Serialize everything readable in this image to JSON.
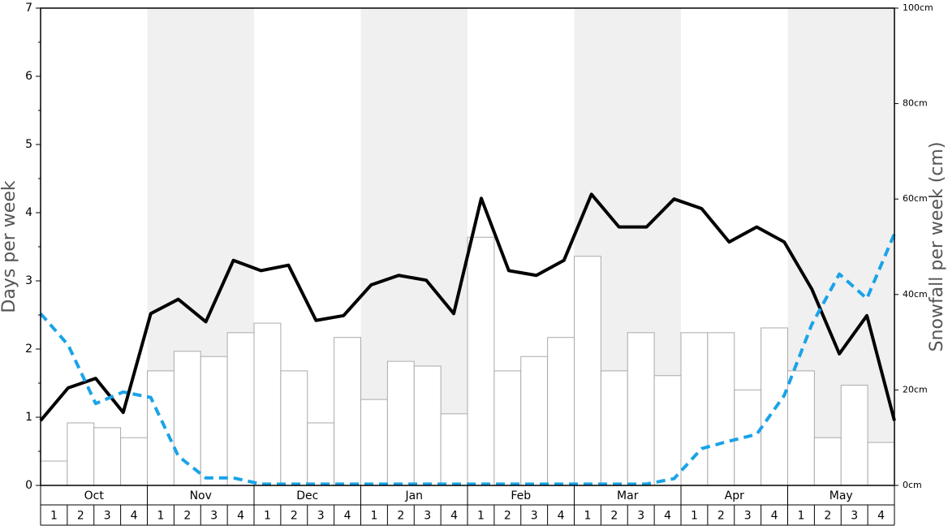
{
  "chart_data": {
    "type": "bar-line",
    "ylabel": "Days per week",
    "y2label": "Snowfall per week (cm)",
    "months": [
      "Oct",
      "Nov",
      "Dec",
      "Jan",
      "Feb",
      "Mar",
      "Apr",
      "May"
    ],
    "categories": [
      "1",
      "2",
      "3",
      "4",
      "1",
      "2",
      "3",
      "4",
      "1",
      "2",
      "3",
      "4",
      "1",
      "2",
      "3",
      "4",
      "1",
      "2",
      "3",
      "4",
      "1",
      "2",
      "3",
      "4",
      "1",
      "2",
      "3",
      "4",
      "1",
      "2",
      "3",
      "4"
    ],
    "ylim": [
      0,
      7
    ],
    "yticks": [
      0,
      1,
      2,
      3,
      4,
      5,
      6,
      7
    ],
    "yminorticks": [
      0.5,
      1.5,
      2.5,
      3.5,
      4.5,
      5.5,
      6.5
    ],
    "y2lim": [
      0,
      100
    ],
    "y2ticks": [
      {
        "value": 0,
        "label": "0cm"
      },
      {
        "value": 20,
        "label": "20cm"
      },
      {
        "value": 40,
        "label": "40cm"
      },
      {
        "value": 60,
        "label": "60cm"
      },
      {
        "value": 80,
        "label": "80cm"
      },
      {
        "value": 100,
        "label": "100cm"
      }
    ],
    "shade_color": "#f0f0f0",
    "series": [
      {
        "kind": "bar",
        "axis": "y2",
        "color": "#ffffff",
        "stroke": "#aaaaaa",
        "values": [
          5.1,
          13.1,
          12.1,
          10,
          24,
          28.1,
          27,
          32,
          34,
          24,
          13.1,
          31,
          18,
          26,
          25,
          15,
          52,
          24,
          27,
          31,
          48,
          24,
          32,
          23,
          32,
          32,
          20,
          33,
          24,
          10,
          21,
          9
        ]
      },
      {
        "kind": "line",
        "color": "#000000",
        "values": [
          0.95,
          1.43,
          1.57,
          1.07,
          2.52,
          2.73,
          2.4,
          3.3,
          3.15,
          3.23,
          2.42,
          2.49,
          2.94,
          3.08,
          3.01,
          2.52,
          4.21,
          3.15,
          3.08,
          3.3,
          4.27,
          3.79,
          3.79,
          4.2,
          4.06,
          3.57,
          3.79,
          3.57,
          2.88,
          1.93,
          2.49,
          0.95
        ]
      },
      {
        "kind": "dashed",
        "color": "#1aa3e8",
        "values": [
          2.52,
          2.06,
          1.2,
          1.37,
          1.29,
          0.43,
          0.11,
          0.11,
          0.02,
          0.02,
          0.02,
          0.02,
          0.02,
          0.02,
          0.02,
          0.02,
          0.02,
          0.02,
          0.02,
          0.02,
          0.02,
          0.02,
          0.02,
          0.1,
          0.54,
          0.65,
          0.75,
          1.32,
          2.36,
          3.1,
          2.74,
          3.69
        ]
      }
    ]
  }
}
